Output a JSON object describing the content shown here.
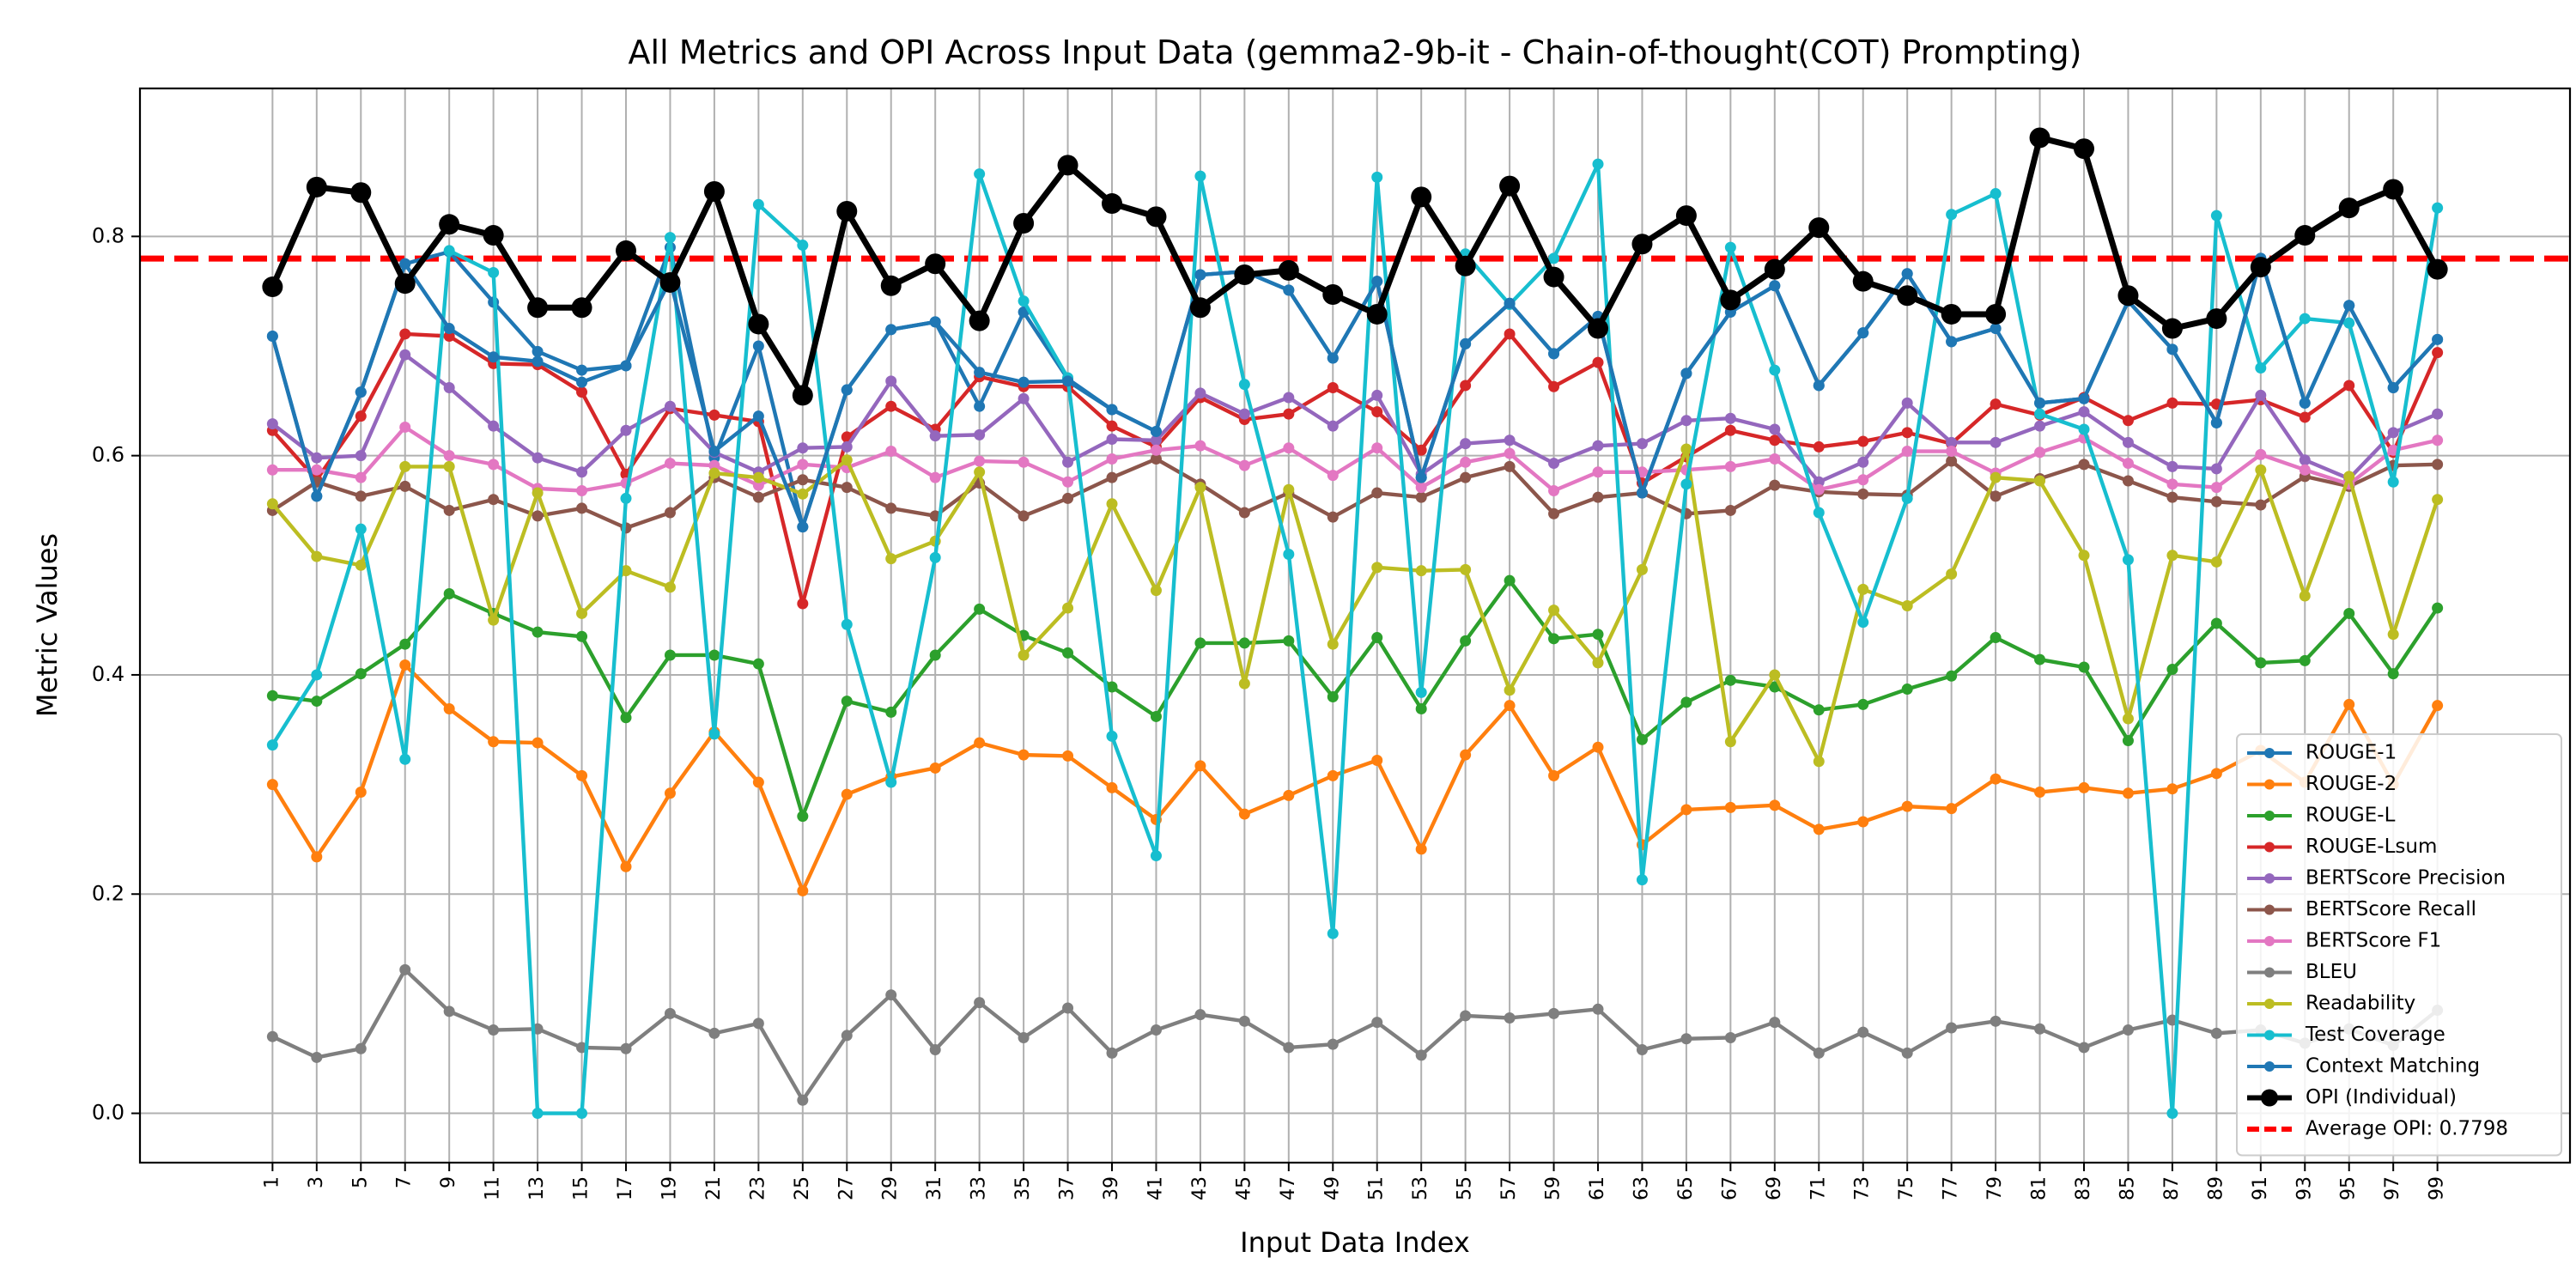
{
  "chart_data": {
    "type": "line",
    "title": "All Metrics and OPI Across Input Data (gemma2-9b-it - Chain-of-thought(COT) Prompting)",
    "xlabel": "Input Data Index",
    "ylabel": "Metric Values",
    "x": [
      1,
      3,
      5,
      7,
      9,
      11,
      13,
      15,
      17,
      19,
      21,
      23,
      25,
      27,
      29,
      31,
      33,
      35,
      37,
      39,
      41,
      43,
      45,
      47,
      49,
      51,
      53,
      55,
      57,
      59,
      61,
      63,
      65,
      67,
      69,
      71,
      73,
      75,
      77,
      79,
      81,
      83,
      85,
      87,
      89,
      91,
      93,
      95,
      97,
      99
    ],
    "xlim": [
      -5,
      105
    ],
    "ylim": [
      -0.045,
      0.935
    ],
    "yticks": [
      "0.0",
      "0.2",
      "0.4",
      "0.6",
      "0.8"
    ],
    "grid": true,
    "legend_position": "lower right",
    "series": [
      {
        "name": "ROUGE-1",
        "color": "#1f77b4",
        "values": [
          0.709,
          0.563,
          0.658,
          0.775,
          0.786,
          0.74,
          0.695,
          0.678,
          0.682,
          0.79,
          0.598,
          0.7,
          0.535,
          0.66,
          0.715,
          0.722,
          0.645,
          0.731,
          0.67,
          0.642,
          0.622,
          0.765,
          0.768,
          0.751,
          0.689,
          0.759,
          0.58,
          0.702,
          0.739,
          0.693,
          0.727,
          0.566,
          0.675,
          0.731,
          0.755,
          0.664,
          0.712,
          0.766,
          0.704,
          0.716,
          0.648,
          0.652,
          0.741,
          0.697,
          0.63,
          0.78,
          0.648,
          0.737,
          0.662,
          0.706
        ]
      },
      {
        "name": "ROUGE-2",
        "color": "#ff7f0e",
        "values": [
          0.3,
          0.234,
          0.293,
          0.409,
          0.369,
          0.339,
          0.338,
          0.308,
          0.225,
          0.292,
          0.348,
          0.302,
          0.203,
          0.291,
          0.307,
          0.315,
          0.338,
          0.327,
          0.326,
          0.297,
          0.268,
          0.317,
          0.273,
          0.29,
          0.308,
          0.322,
          0.241,
          0.327,
          0.372,
          0.308,
          0.334,
          0.245,
          0.277,
          0.279,
          0.281,
          0.259,
          0.266,
          0.28,
          0.278,
          0.305,
          0.293,
          0.297,
          0.292,
          0.296,
          0.31,
          0.331,
          0.302,
          0.373,
          0.3,
          0.372
        ]
      },
      {
        "name": "ROUGE-L",
        "color": "#2ca02c",
        "values": [
          0.381,
          0.376,
          0.401,
          0.428,
          0.474,
          0.456,
          0.439,
          0.435,
          0.361,
          0.418,
          0.418,
          0.41,
          0.271,
          0.376,
          0.366,
          0.418,
          0.46,
          0.436,
          0.42,
          0.389,
          0.362,
          0.429,
          0.429,
          0.431,
          0.38,
          0.434,
          0.369,
          0.431,
          0.486,
          0.433,
          0.437,
          0.341,
          0.375,
          0.395,
          0.389,
          0.368,
          0.373,
          0.387,
          0.399,
          0.434,
          0.414,
          0.407,
          0.34,
          0.405,
          0.447,
          0.411,
          0.413,
          0.456,
          0.401,
          0.461
        ]
      },
      {
        "name": "ROUGE-Lsum",
        "color": "#d62728",
        "values": [
          0.623,
          0.578,
          0.636,
          0.711,
          0.709,
          0.684,
          0.683,
          0.658,
          0.583,
          0.643,
          0.637,
          0.631,
          0.465,
          0.617,
          0.645,
          0.624,
          0.672,
          0.663,
          0.663,
          0.627,
          0.608,
          0.653,
          0.633,
          0.638,
          0.662,
          0.64,
          0.605,
          0.664,
          0.711,
          0.663,
          0.685,
          0.575,
          0.599,
          0.623,
          0.614,
          0.608,
          0.613,
          0.621,
          0.611,
          0.647,
          0.637,
          0.653,
          0.632,
          0.648,
          0.647,
          0.651,
          0.635,
          0.664,
          0.603,
          0.694
        ]
      },
      {
        "name": "BERTScore Precision",
        "color": "#9467bd",
        "values": [
          0.629,
          0.598,
          0.6,
          0.692,
          0.662,
          0.627,
          0.598,
          0.585,
          0.623,
          0.645,
          0.603,
          0.585,
          0.607,
          0.608,
          0.668,
          0.618,
          0.619,
          0.652,
          0.594,
          0.615,
          0.614,
          0.657,
          0.638,
          0.653,
          0.627,
          0.655,
          0.583,
          0.611,
          0.614,
          0.593,
          0.609,
          0.611,
          0.632,
          0.634,
          0.624,
          0.576,
          0.594,
          0.648,
          0.612,
          0.612,
          0.627,
          0.64,
          0.612,
          0.59,
          0.588,
          0.655,
          0.596,
          0.579,
          0.621,
          0.638
        ]
      },
      {
        "name": "BERTScore Recall",
        "color": "#8c564b",
        "values": [
          0.55,
          0.576,
          0.563,
          0.572,
          0.55,
          0.56,
          0.545,
          0.552,
          0.534,
          0.548,
          0.58,
          0.562,
          0.578,
          0.571,
          0.552,
          0.545,
          0.575,
          0.545,
          0.561,
          0.58,
          0.597,
          0.574,
          0.548,
          0.566,
          0.544,
          0.566,
          0.562,
          0.58,
          0.59,
          0.547,
          0.562,
          0.566,
          0.547,
          0.55,
          0.573,
          0.567,
          0.565,
          0.564,
          0.595,
          0.563,
          0.579,
          0.592,
          0.577,
          0.562,
          0.558,
          0.555,
          0.581,
          0.572,
          0.591,
          0.592
        ]
      },
      {
        "name": "BERTScore F1",
        "color": "#e377c2",
        "values": [
          0.587,
          0.587,
          0.58,
          0.626,
          0.6,
          0.592,
          0.57,
          0.568,
          0.575,
          0.593,
          0.591,
          0.573,
          0.592,
          0.589,
          0.604,
          0.58,
          0.595,
          0.594,
          0.576,
          0.597,
          0.605,
          0.609,
          0.591,
          0.607,
          0.582,
          0.607,
          0.571,
          0.594,
          0.602,
          0.568,
          0.585,
          0.585,
          0.587,
          0.59,
          0.597,
          0.569,
          0.578,
          0.604,
          0.604,
          0.584,
          0.603,
          0.616,
          0.593,
          0.574,
          0.571,
          0.601,
          0.587,
          0.574,
          0.605,
          0.614
        ]
      },
      {
        "name": "BLEU",
        "color": "#7f7f7f",
        "values": [
          0.07,
          0.051,
          0.059,
          0.131,
          0.093,
          0.076,
          0.077,
          0.06,
          0.059,
          0.091,
          0.073,
          0.082,
          0.012,
          0.071,
          0.108,
          0.058,
          0.101,
          0.069,
          0.096,
          0.055,
          0.076,
          0.09,
          0.084,
          0.06,
          0.063,
          0.083,
          0.053,
          0.089,
          0.087,
          0.091,
          0.095,
          0.058,
          0.068,
          0.069,
          0.083,
          0.055,
          0.074,
          0.055,
          0.078,
          0.084,
          0.077,
          0.06,
          0.076,
          0.085,
          0.073,
          0.076,
          0.064,
          0.077,
          0.062,
          0.094
        ]
      },
      {
        "name": "Readability",
        "color": "#bcbd22",
        "values": [
          0.556,
          0.508,
          0.5,
          0.59,
          0.59,
          0.45,
          0.566,
          0.456,
          0.495,
          0.48,
          0.584,
          0.58,
          0.565,
          0.596,
          0.506,
          0.522,
          0.585,
          0.418,
          0.461,
          0.556,
          0.477,
          0.571,
          0.392,
          0.569,
          0.428,
          0.498,
          0.495,
          0.496,
          0.386,
          0.459,
          0.411,
          0.496,
          0.606,
          0.339,
          0.4,
          0.321,
          0.478,
          0.463,
          0.492,
          0.58,
          0.577,
          0.509,
          0.36,
          0.509,
          0.503,
          0.587,
          0.472,
          0.581,
          0.437,
          0.56
        ]
      },
      {
        "name": "Test Coverage",
        "color": "#17becf",
        "values": [
          0.336,
          0.4,
          0.533,
          0.323,
          0.787,
          0.767,
          0.0,
          0.0,
          0.561,
          0.799,
          0.346,
          0.829,
          0.792,
          0.446,
          0.302,
          0.507,
          0.857,
          0.741,
          0.671,
          0.344,
          0.235,
          0.855,
          0.665,
          0.51,
          0.164,
          0.854,
          0.384,
          0.784,
          0.738,
          0.78,
          0.866,
          0.213,
          0.574,
          0.79,
          0.678,
          0.548,
          0.448,
          0.561,
          0.82,
          0.839,
          0.638,
          0.624,
          0.505,
          0.0,
          0.819,
          0.68,
          0.725,
          0.721,
          0.576,
          0.826
        ]
      },
      {
        "name": "Context Matching",
        "color": "#1f77b4",
        "values": [
          0.709,
          0.563,
          0.658,
          0.775,
          0.716,
          0.69,
          0.686,
          0.667,
          0.682,
          0.76,
          0.604,
          0.636,
          0.535,
          0.66,
          0.715,
          0.722,
          0.676,
          0.667,
          0.668,
          0.642,
          0.622,
          0.765,
          0.768,
          0.751,
          0.689,
          0.759,
          0.58,
          0.702,
          0.739,
          0.693,
          0.727,
          0.566,
          0.675,
          0.731,
          0.755,
          0.664,
          0.712,
          0.766,
          0.704,
          0.716,
          0.648,
          0.652,
          0.741,
          0.697,
          0.63,
          0.78,
          0.648,
          0.737,
          0.662,
          0.706
        ]
      },
      {
        "name": "OPI (Individual)",
        "color": "#000000",
        "values": [
          0.754,
          0.845,
          0.84,
          0.757,
          0.811,
          0.801,
          0.735,
          0.735,
          0.787,
          0.758,
          0.841,
          0.72,
          0.655,
          0.823,
          0.755,
          0.775,
          0.723,
          0.812,
          0.865,
          0.83,
          0.818,
          0.735,
          0.765,
          0.769,
          0.747,
          0.729,
          0.836,
          0.773,
          0.846,
          0.763,
          0.716,
          0.793,
          0.819,
          0.742,
          0.77,
          0.808,
          0.759,
          0.746,
          0.729,
          0.729,
          0.89,
          0.88,
          0.746,
          0.716,
          0.725,
          0.772,
          0.801,
          0.826,
          0.843,
          0.77
        ]
      }
    ],
    "average_line": {
      "name": "Average OPI: 0.7798",
      "value": 0.7798,
      "color": "#ff0000"
    }
  }
}
